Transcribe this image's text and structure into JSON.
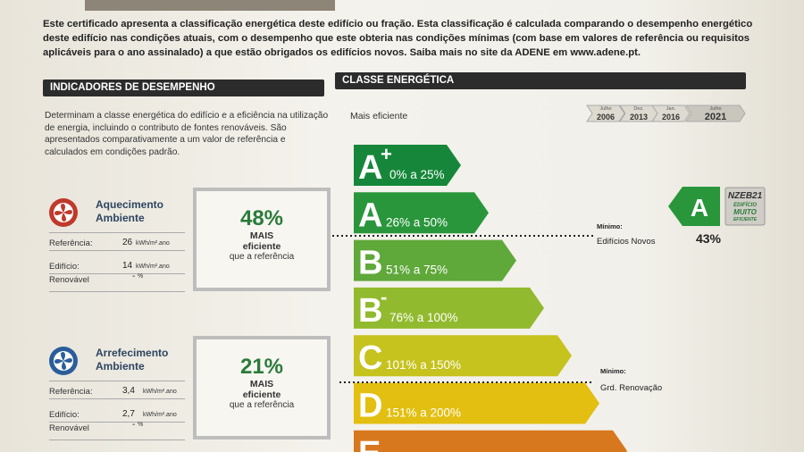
{
  "intro": "Este certificado apresenta a classificação energética deste edifício ou fração. Esta classificação é calculada comparando o desempenho energético deste edifício nas condições atuais, com o desempenho que este obteria nas condições mínimas (com base em valores de referência ou requisitos aplicáveis para o ano assinalado) a que estão obrigados os edifícios novos. Saiba mais no site da ADENE em www.adene.pt.",
  "indicators": {
    "title": "INDICADORES DE DESEMPENHO",
    "description": "Determinam a classe energética do edifício e a eficiência na utilização de energia, incluindo o contributo de fontes renováveis. São apresentados comparativamente a um valor de referência e calculados em condições padrão.",
    "items": [
      {
        "title": "Aquecimento Ambiente",
        "reference_label": "Referência:",
        "reference": "26",
        "reference_unit": "kWh/m².ano",
        "building_label": "Edifício:",
        "building": "14",
        "building_unit": "kWh/m².ano",
        "renewable_label": "Renovável",
        "renewable": "-",
        "renewable_unit": "%",
        "percent": "48%",
        "more": "MAIS",
        "efficient": "eficiente",
        "than": "que a referência"
      },
      {
        "title": "Arrefecimento Ambiente",
        "reference_label": "Referência:",
        "reference": "3,4",
        "reference_unit": "kWh/m².ano",
        "building_label": "Edifício:",
        "building": "2,7",
        "building_unit": "kWh/m².ano",
        "renewable_label": "Renovável",
        "renewable": "-",
        "renewable_unit": "%",
        "percent": "21%",
        "more": "MAIS",
        "efficient": "eficiente",
        "than": "que a referência"
      }
    ]
  },
  "energy_class": {
    "title": "CLASSE ENERGÉTICA",
    "most_efficient": "Mais eficiente",
    "years": [
      {
        "month": "Julho",
        "year": "2006"
      },
      {
        "month": "Dez.",
        "year": "2013"
      },
      {
        "month": "Jan.",
        "year": "2016"
      },
      {
        "month": "Julho",
        "year": "2021"
      }
    ],
    "classes": [
      {
        "letter": "A",
        "sup": "+",
        "range": "0% a 25%",
        "color": "#16873a"
      },
      {
        "letter": "A",
        "range": "26% a 50%",
        "color": "#2a963c"
      },
      {
        "letter": "B",
        "range": "51% a 75%",
        "color": "#5fa83a"
      },
      {
        "letter": "B",
        "sup": "-",
        "range": "76% a 100%",
        "color": "#92ba2e"
      },
      {
        "letter": "C",
        "range": "101% a 150%",
        "color": "#c6c21e"
      },
      {
        "letter": "D",
        "range": "151% a 200%",
        "color": "#e2bf10"
      },
      {
        "letter": "E",
        "color": "#d8781e"
      }
    ],
    "minimum_new": {
      "label": "Mínimo:",
      "text": "Edifícios Novos"
    },
    "minimum_renovation": {
      "label": "Mínimo:",
      "text": "Grd. Renovação"
    },
    "rating": {
      "letter": "A",
      "percent": "43%"
    },
    "badge": {
      "title": "NZEB21",
      "line1": "EDIFÍCIO",
      "line2": "MUITO",
      "line3": "EFICIENTE"
    }
  }
}
